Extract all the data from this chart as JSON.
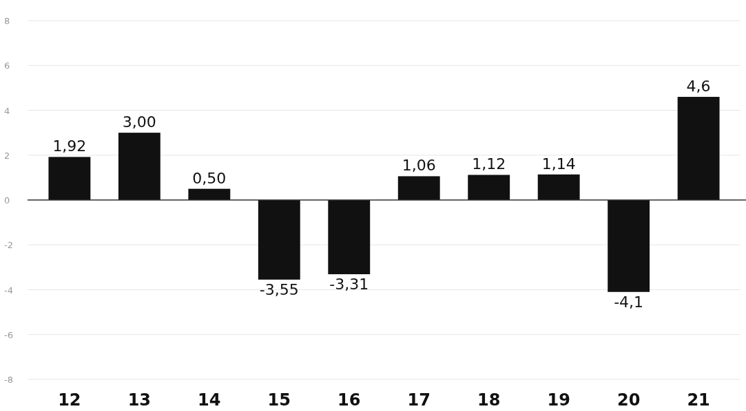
{
  "chart_data": {
    "type": "bar",
    "categories": [
      "12",
      "13",
      "14",
      "15",
      "16",
      "17",
      "18",
      "19",
      "20",
      "21"
    ],
    "values": [
      1.92,
      3.0,
      0.5,
      -3.55,
      -3.31,
      1.06,
      1.12,
      1.14,
      -4.1,
      4.6
    ],
    "value_labels": [
      "1,92",
      "3,00",
      "0,50",
      "-3,55",
      "-3,31",
      "1,06",
      "1,12",
      "1,14",
      "-4,1",
      "4,6"
    ],
    "color": "#111111",
    "ylim": [
      -8,
      8
    ],
    "yticks": [
      8,
      6,
      4,
      2,
      0,
      -2,
      -4,
      -6,
      -8
    ],
    "grid": "y"
  }
}
